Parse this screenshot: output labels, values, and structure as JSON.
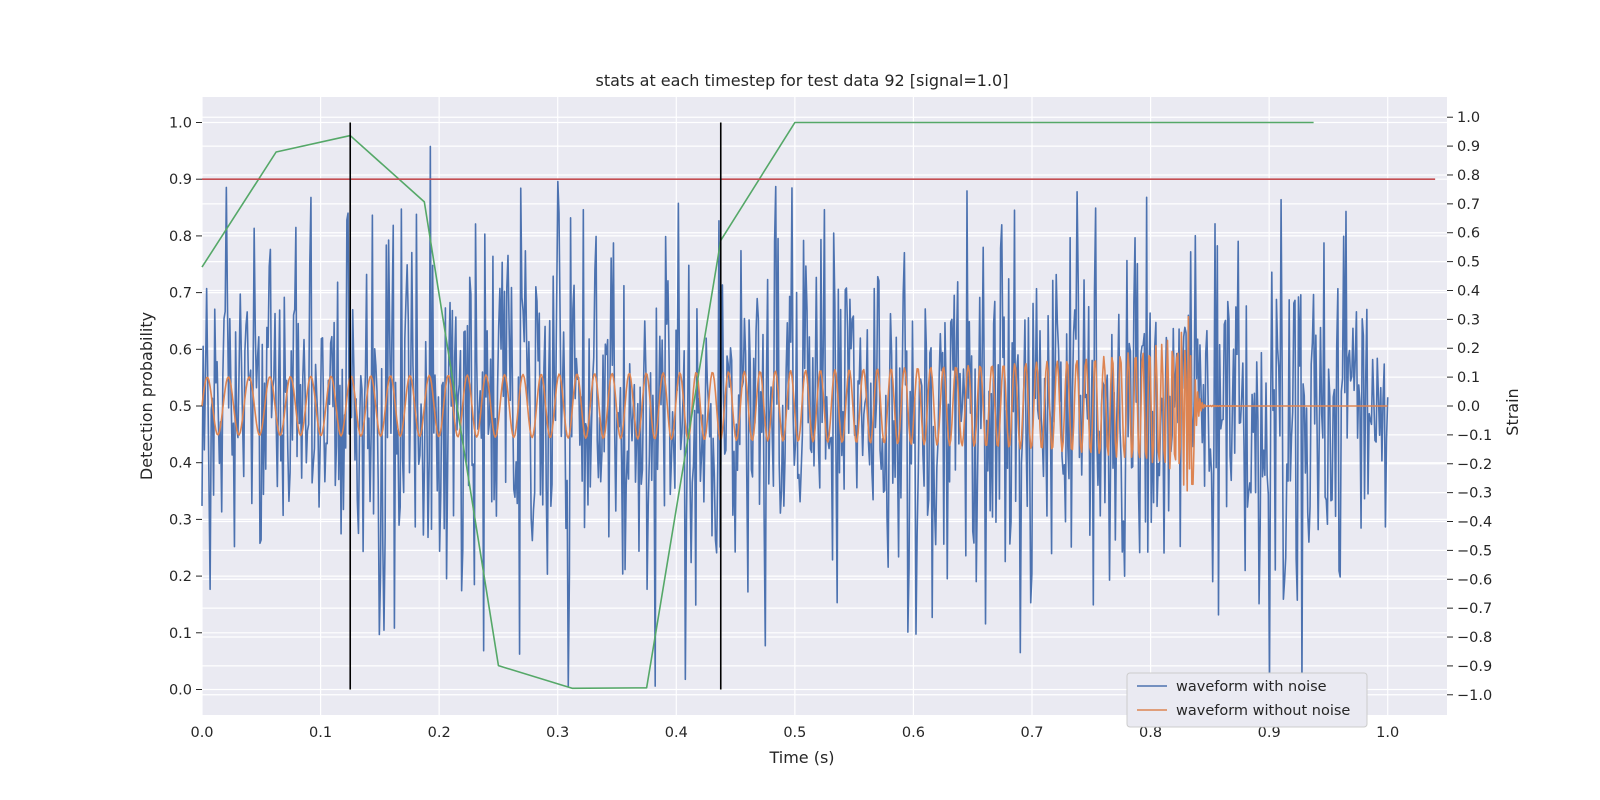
{
  "chart_data": {
    "type": "line",
    "title": "stats at each timestep for test data 92 [signal=1.0]",
    "xlabel": "Time (s)",
    "ylabel": "Detection probability",
    "ylabel_right": "Strain",
    "xlim": [
      0.0,
      1.05
    ],
    "ylim": [
      -0.045,
      1.045
    ],
    "ylim_right": [
      -1.07,
      1.07
    ],
    "x_ticks": [
      "0.0",
      "0.1",
      "0.2",
      "0.3",
      "0.4",
      "0.5",
      "0.6",
      "0.7",
      "0.8",
      "0.9",
      "1.0"
    ],
    "y_ticks": [
      "0.0",
      "0.1",
      "0.2",
      "0.3",
      "0.4",
      "0.5",
      "0.6",
      "0.7",
      "0.8",
      "0.9",
      "1.0"
    ],
    "y_ticks_right": [
      "−1.0",
      "−0.9",
      "−0.8",
      "−0.7",
      "−0.6",
      "−0.5",
      "−0.4",
      "−0.3",
      "−0.2",
      "−0.1",
      "0.0",
      "0.1",
      "0.2",
      "0.3",
      "0.4",
      "0.5",
      "0.6",
      "0.7",
      "0.8",
      "0.9",
      "1.0"
    ],
    "grid": true,
    "legend_position": "lower-right",
    "threshold": 0.9,
    "vlines": [
      0.125,
      0.4375
    ],
    "series": [
      {
        "name": "waveform with noise",
        "axis": "right",
        "color": "#4c72b0",
        "kind": "noise",
        "n_points": 1024,
        "x_range": [
          0.0,
          1.0
        ],
        "approx_std": 0.3,
        "approx_range": [
          -0.97,
          1.0
        ]
      },
      {
        "name": "waveform without noise",
        "axis": "right",
        "color": "#dd8452",
        "kind": "chirp",
        "merger_time": 0.836,
        "approx_peak": 0.33
      },
      {
        "axis": "left",
        "color": "#55a868",
        "kind": "probability",
        "x": [
          0.0,
          0.0625,
          0.125,
          0.1875,
          0.25,
          0.3125,
          0.375,
          0.4375,
          0.5,
          0.5625,
          0.625,
          0.6875,
          0.75,
          0.8125,
          0.875,
          0.9375
        ],
        "y": [
          0.745,
          0.948,
          0.977,
          0.86,
          0.042,
          0.002,
          0.003,
          0.792,
          1.0,
          1.0,
          1.0,
          1.0,
          1.0,
          1.0,
          1.0,
          1.0
        ]
      }
    ],
    "colors": {
      "background": "#eaeaf2",
      "grid": "#ffffff",
      "threshold": "#c44e52",
      "vline": "#000000"
    }
  }
}
